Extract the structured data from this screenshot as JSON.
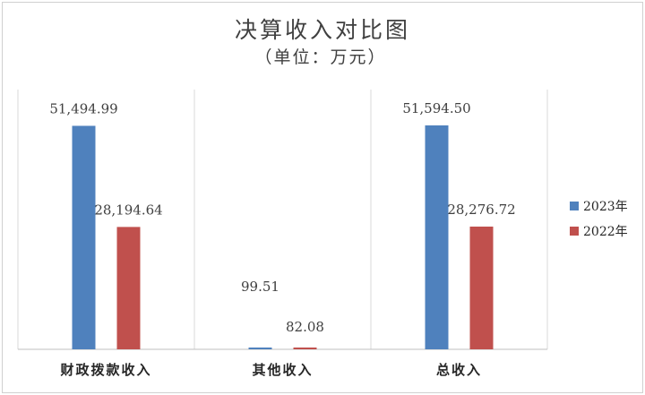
{
  "chart_data": {
    "type": "bar",
    "title": "决算收入对比图",
    "subtitle": "（单位：万元）",
    "categories": [
      "财政拨款收入",
      "其他收入",
      "总收入"
    ],
    "series": [
      {
        "name": "2023年",
        "color": "#4f81bd",
        "values": [
          51494.99,
          99.51,
          51594.5
        ],
        "labels": [
          "51,494.99",
          "99.51",
          "51,594.50"
        ]
      },
      {
        "name": "2022年",
        "color": "#c0504d",
        "values": [
          28194.64,
          82.08,
          28276.72
        ],
        "labels": [
          "28,194.64",
          "82.08",
          "28,276.72"
        ]
      }
    ],
    "ylim": [
      0,
      51594.5
    ],
    "grid": false,
    "legend_position": "right"
  }
}
